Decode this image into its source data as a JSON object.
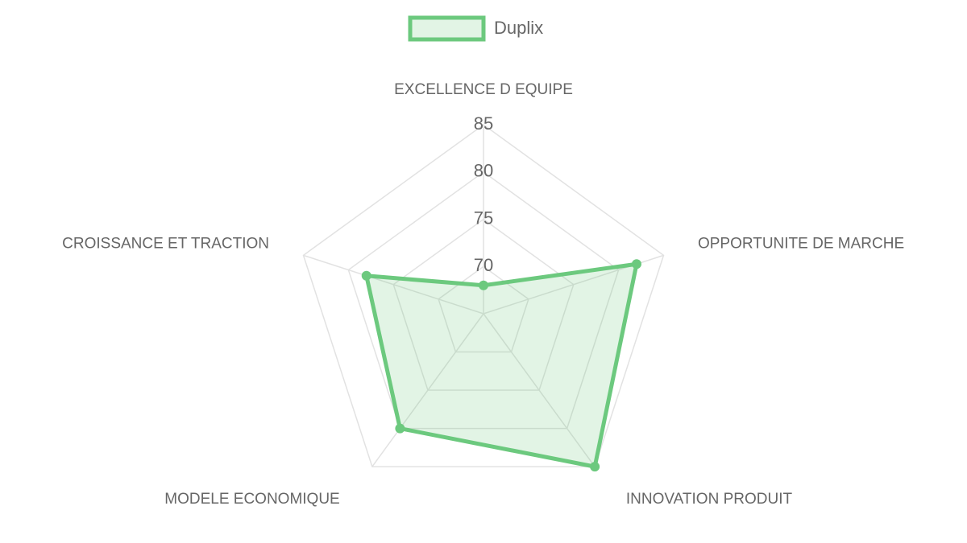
{
  "chart_data": {
    "type": "radar",
    "categories": [
      "EXCELLENCE D EQUIPE",
      "OPPORTUNITE DE MARCHE",
      "INNOVATION PRODUIT",
      "MODELE ECONOMIQUE",
      "CROISSANCE ET TRACTION"
    ],
    "series": [
      {
        "name": "Duplix",
        "color": "#6cc97e",
        "values": [
          68,
          82,
          85,
          80,
          78
        ]
      }
    ],
    "rlim": [
      65,
      85
    ],
    "rticks": [
      70,
      75,
      80,
      85
    ],
    "grid": true,
    "legend": "top"
  }
}
